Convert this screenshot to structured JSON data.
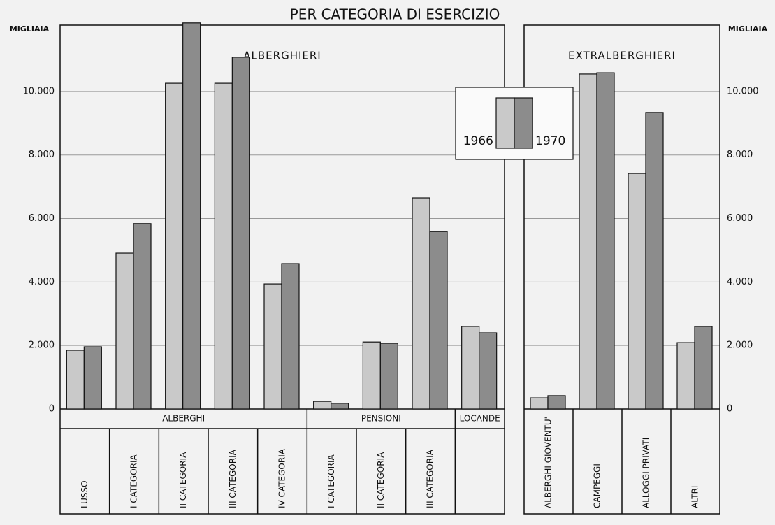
{
  "chart_data": {
    "type": "bar",
    "title": "PER CATEGORIA DI ESERCIZIO",
    "y_label": "MIGLIAIA",
    "ylim": [
      0,
      12200
    ],
    "yticks": [
      0,
      {
        "value": 2000,
        "label": "2.000"
      },
      {
        "value": 4000,
        "label": "4.000"
      },
      {
        "value": 6000,
        "label": "6.000"
      },
      {
        "value": 8000,
        "label": "8.000"
      },
      {
        "value": 10000,
        "label": "10.000"
      }
    ],
    "grid": true,
    "legend": [
      {
        "name": "1966",
        "color": "#c9c9c9"
      },
      {
        "name": "1970",
        "color": "#8c8c8c"
      }
    ],
    "panels": [
      {
        "title": "ALBERGHIERI",
        "groups": [
          {
            "name": "ALBERGHI",
            "categories": [
              "LUSSO",
              "I CATEGORIA",
              "II CATEGORIA",
              "III CATEGORIA",
              "IV CATEGORIA"
            ],
            "series": [
              {
                "values": [
                  1850,
                  4910,
                  10260,
                  10260,
                  3940
                ]
              },
              {
                "values": [
                  1960,
                  5840,
                  12160,
                  11080,
                  4580
                ]
              }
            ]
          },
          {
            "name": "PENSIONI",
            "categories": [
              "I CATEGORIA",
              "II CATEGORIA",
              "III CATEGORIA"
            ],
            "series": [
              {
                "values": [
                  240,
                  2110,
                  6650
                ]
              },
              {
                "values": [
                  180,
                  2070,
                  5590
                ]
              }
            ]
          },
          {
            "name": "LOCANDE",
            "categories": [
              null
            ],
            "series": [
              {
                "values": [
                  2600
                ]
              },
              {
                "values": [
                  2400
                ]
              }
            ]
          }
        ]
      },
      {
        "title": "EXTRALBERGHIERI",
        "groups": [
          {
            "categories": [
              "ALBERGHI GIOVENTU'",
              "CAMPEGGI",
              "ALLOGGI PRIVATI",
              "ALTRI"
            ],
            "series": [
              {
                "values": [
                  350,
                  10550,
                  7420,
                  2090
                ]
              },
              {
                "values": [
                  420,
                  10590,
                  9340,
                  2600
                ]
              }
            ]
          }
        ]
      }
    ]
  }
}
